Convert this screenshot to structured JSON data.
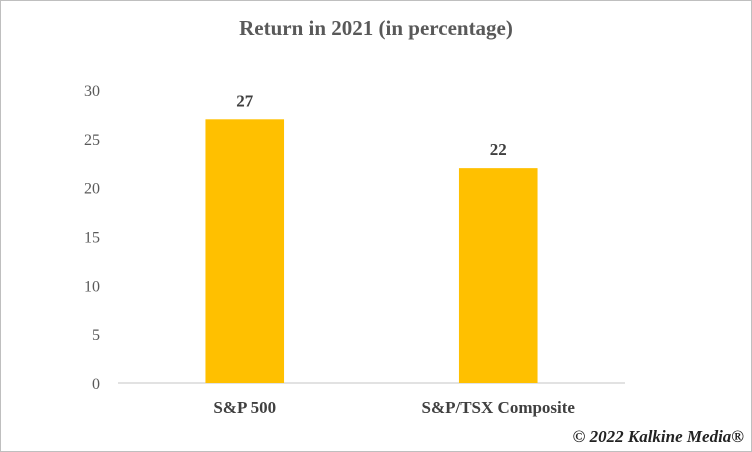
{
  "chart_data": {
    "type": "bar",
    "title": "Return in 2021 (in percentage)",
    "categories": [
      "S&P 500",
      "S&P/TSX Composite"
    ],
    "values": [
      27,
      22
    ],
    "data_labels": [
      "27",
      "22"
    ],
    "ylim": [
      0,
      30
    ],
    "yticks": [
      0,
      5,
      10,
      15,
      20,
      25,
      30
    ],
    "xlabel": "",
    "ylabel": "",
    "grid": false,
    "legend": "none",
    "bar_color": "#FFC000"
  },
  "footer": {
    "copyright": "© 2022 Kalkine Media®"
  }
}
